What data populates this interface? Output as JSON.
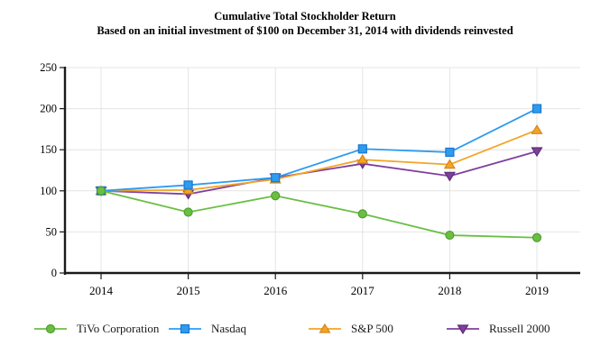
{
  "page": {
    "background": "#ffffff",
    "axis_color": "#1a1a1a",
    "grid_color": "#e4e4e4"
  },
  "chart_data": {
    "type": "line",
    "title": "Cumulative Total Stockholder Return",
    "subtitle": "Based on an initial investment of $100 on December 31, 2014 with dividends reinvested",
    "categories": [
      "2014",
      "2015",
      "2016",
      "2017",
      "2018",
      "2019"
    ],
    "y_ticks": [
      0,
      50,
      100,
      150,
      200,
      250
    ],
    "ylim": [
      0,
      250
    ],
    "grid": true,
    "legend_position": "bottom",
    "series": [
      {
        "name": "TiVo Corporation",
        "marker": "circle",
        "color": "#6abf43",
        "edge": "#4f9e2f",
        "values": [
          100,
          74,
          94,
          72,
          46,
          43
        ]
      },
      {
        "name": "Nasdaq",
        "marker": "square",
        "color": "#2d9bf0",
        "edge": "#1877cc",
        "values": [
          100,
          107,
          116,
          151,
          147,
          200
        ]
      },
      {
        "name": "S&P 500",
        "marker": "triangle-up",
        "color": "#f5a325",
        "edge": "#d4881a",
        "values": [
          100,
          101,
          114,
          138,
          132,
          174
        ]
      },
      {
        "name": "Russell 2000",
        "marker": "triangle-down",
        "color": "#7e3f9d",
        "edge": "#5f2d77",
        "values": [
          100,
          96,
          116,
          133,
          118,
          148
        ]
      }
    ]
  }
}
